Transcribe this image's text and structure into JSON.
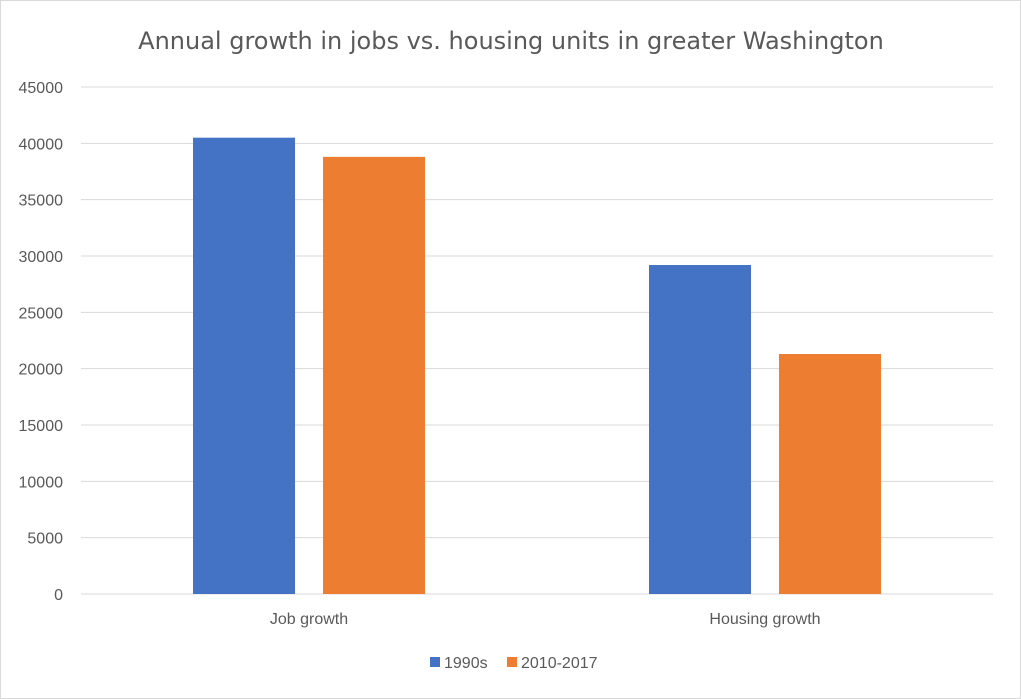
{
  "chart_data": {
    "type": "bar",
    "title": "Annual growth in jobs vs. housing units in greater Washington",
    "categories": [
      "Job growth",
      "Housing growth"
    ],
    "series": [
      {
        "name": "1990s",
        "color": "#4472C4",
        "values": [
          40500,
          29200
        ]
      },
      {
        "name": "2010-2017",
        "color": "#ED7D31",
        "values": [
          38800,
          21300
        ]
      }
    ],
    "ylim": [
      0,
      45000
    ],
    "yticks": [
      0,
      5000,
      10000,
      15000,
      20000,
      25000,
      30000,
      35000,
      40000,
      45000
    ],
    "grid": true,
    "legend": "bottom",
    "xlabel": "",
    "ylabel": ""
  }
}
